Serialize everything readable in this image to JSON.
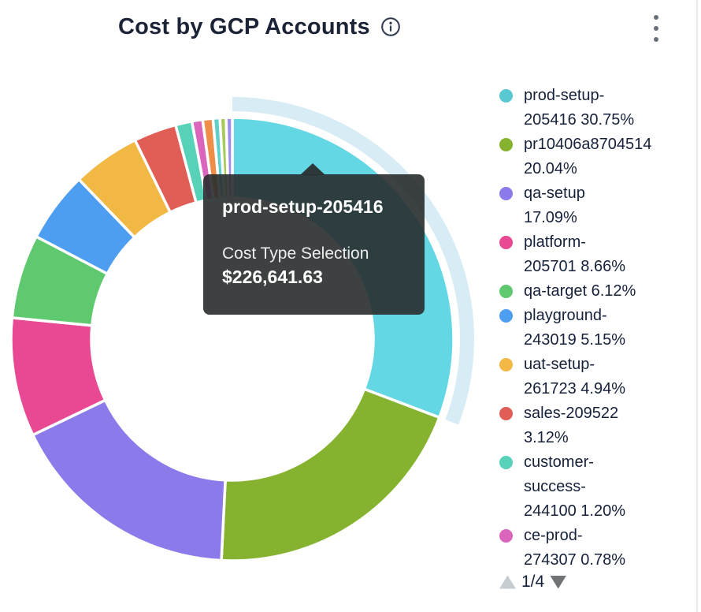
{
  "card": {
    "title": "Cost by GCP Accounts"
  },
  "tooltip": {
    "title": "prod-setup-205416",
    "metric_label": "Cost Type Selection",
    "metric_value": "$226,641.63"
  },
  "legend_pagination": {
    "page": "1/4",
    "up_enabled": false,
    "down_enabled": true
  },
  "chart_data": {
    "type": "pie",
    "subtype": "donut",
    "title": "Cost by GCP Accounts",
    "value_label": "Cost Type Selection",
    "highlighted_slice": "prod-setup-205416",
    "highlighted_value": "$226,641.63",
    "start_angle_deg": 0,
    "direction": "clockwise",
    "inner_radius_ratio": 0.64,
    "legend_position": "right",
    "highlight_halo_color": "#d7ecf4",
    "slices": [
      {
        "name": "prod-setup-205416",
        "pct": 30.75,
        "color": "#58c8d3",
        "hover_color": "#63d7e3",
        "highlighted": true,
        "legend_label": "prod-setup-\n205416 30.75%"
      },
      {
        "name": "pr10406a8704514",
        "pct": 20.04,
        "color": "#85b32f",
        "legend_label": "pr10406a8704514\n20.04%"
      },
      {
        "name": "qa-setup",
        "pct": 17.09,
        "color": "#8b7bea",
        "legend_label": "qa-setup\n17.09%"
      },
      {
        "name": "platform-205701",
        "pct": 8.66,
        "color": "#e84992",
        "legend_label": "platform-\n205701 8.66%"
      },
      {
        "name": "qa-target",
        "pct": 6.12,
        "color": "#5ec96e",
        "legend_label": "qa-target 6.12%"
      },
      {
        "name": "playground-243019",
        "pct": 5.15,
        "color": "#4d9df0",
        "legend_label": "playground-\n243019 5.15%"
      },
      {
        "name": "uat-setup-261723",
        "pct": 4.94,
        "color": "#f2b844",
        "legend_label": "uat-setup-\n261723 4.94%"
      },
      {
        "name": "sales-209522",
        "pct": 3.12,
        "color": "#e05e56",
        "legend_label": "sales-209522\n3.12%"
      },
      {
        "name": "customer-success-244100",
        "pct": 1.2,
        "color": "#57d1b7",
        "legend_label": "customer-\nsuccess-\n244100 1.20%"
      },
      {
        "name": "ce-prod-274307",
        "pct": 0.78,
        "color": "#db65bc",
        "legend_label": "ce-prod-\n274307 0.78%"
      },
      {
        "name": "",
        "pct": 0.75,
        "color": "#ee8e49"
      },
      {
        "name": "",
        "pct": 0.5,
        "color": "#5fcfc9"
      },
      {
        "name": "",
        "pct": 0.45,
        "color": "#a6cb59"
      },
      {
        "name": "",
        "pct": 0.45,
        "color": "#9f8ceb"
      }
    ]
  }
}
